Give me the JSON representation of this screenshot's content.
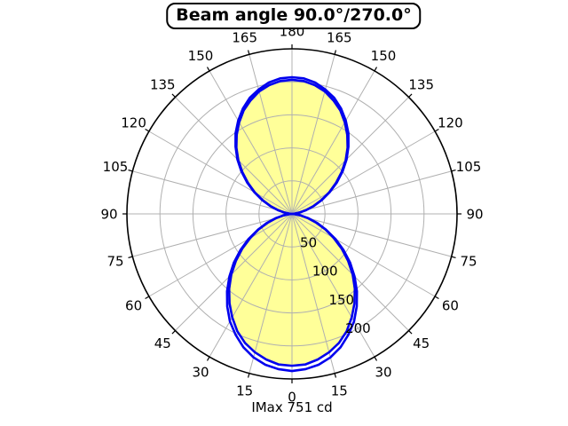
{
  "title": "Beam angle 90.0°/270.0°",
  "footer": "IMax 751 cd",
  "chart_data": {
    "type": "polar",
    "title": "Beam angle 90.0°/270.0°",
    "annotation": "IMax 751 cd",
    "imax_cd": 751,
    "beam_angles_deg": [
      90.0,
      270.0
    ],
    "angle_labels": [
      0,
      15,
      30,
      45,
      60,
      75,
      90,
      105,
      120,
      135,
      150,
      165,
      180
    ],
    "angle_labels_mirrored_both_sides": true,
    "angle_zero_position": "bottom",
    "radial_ticks": [
      50,
      100,
      150,
      200
    ],
    "radial_max": 250,
    "radial_label_ray_deg": 30,
    "grid": true,
    "gamma_deg": [
      0,
      5,
      10,
      15,
      20,
      25,
      30,
      35,
      40,
      45,
      50,
      55,
      60,
      65,
      70,
      75,
      80,
      85,
      90,
      95,
      100,
      105,
      110,
      115,
      120,
      125,
      130,
      135,
      140,
      145,
      150,
      155,
      160,
      165,
      170,
      175,
      180
    ],
    "series": [
      {
        "name": "outer-curve",
        "filled": false,
        "values": [
          238,
          236,
          232,
          225,
          215,
          202,
          188,
          171,
          153,
          134,
          115,
          95,
          76,
          57,
          41,
          26,
          13,
          4,
          0,
          4,
          12,
          22,
          35,
          50,
          66,
          83,
          100,
          117,
          133,
          149,
          163,
          176,
          187,
          195,
          202,
          206,
          207
        ]
      },
      {
        "name": "inner-curve",
        "filled": true,
        "values": [
          230,
          229,
          224,
          217,
          208,
          196,
          181,
          165,
          148,
          130,
          111,
          92,
          73,
          56,
          39,
          25,
          13,
          4,
          0,
          4,
          11,
          22,
          35,
          49,
          65,
          81,
          98,
          115,
          131,
          146,
          160,
          173,
          183,
          192,
          198,
          202,
          203
        ]
      }
    ],
    "colors": {
      "curve": "#0000ee",
      "fill": "#ffff99",
      "grid": "#b0b0b0",
      "axis": "#000000",
      "background": "#ffffff"
    }
  }
}
